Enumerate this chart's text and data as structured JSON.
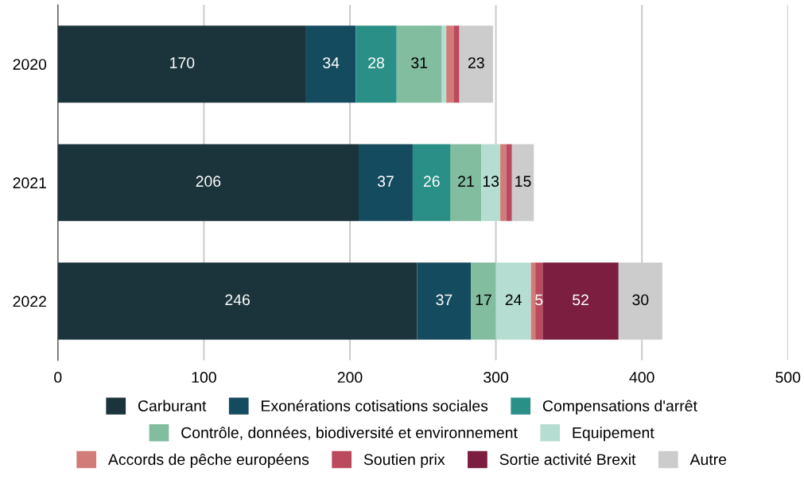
{
  "chart_data": {
    "type": "bar",
    "orientation": "horizontal",
    "stacked": true,
    "categories": [
      "2020",
      "2021",
      "2022"
    ],
    "series": [
      {
        "name": "Carburant",
        "color": "#1b343b",
        "values": [
          170,
          206,
          246
        ],
        "value_labels": [
          "170",
          "206",
          "246"
        ]
      },
      {
        "name": "Exonérations cotisations sociales",
        "color": "#154b5e",
        "values": [
          34,
          37,
          37
        ],
        "value_labels": [
          "34",
          "37",
          "37"
        ]
      },
      {
        "name": "Compensations d'arrêt",
        "color": "#2a8f87",
        "values": [
          28,
          26,
          null
        ],
        "value_labels": [
          "28",
          "26",
          null
        ]
      },
      {
        "name": "Contrôle, données, biodiversité et environnement",
        "color": "#82bda0",
        "values": [
          31,
          21,
          17
        ],
        "value_labels": [
          "31",
          "21",
          "17"
        ]
      },
      {
        "name": "Equipement",
        "color": "#b5ddd2",
        "values": [
          3,
          13,
          24
        ],
        "value_labels": [
          null,
          "13",
          "24"
        ]
      },
      {
        "name": "Accords de pêche européens",
        "color": "#d17c78",
        "values": [
          5,
          4,
          3
        ],
        "value_labels": [
          null,
          null,
          null
        ]
      },
      {
        "name": "Soutien prix",
        "color": "#bb4a5e",
        "values": [
          4,
          4,
          5
        ],
        "value_labels": [
          null,
          null,
          "5"
        ]
      },
      {
        "name": "Sortie activité Brexit",
        "color": "#7b1e40",
        "values": [
          null,
          null,
          52
        ],
        "value_labels": [
          null,
          null,
          "52"
        ]
      },
      {
        "name": "Autre",
        "color": "#cccccc",
        "values": [
          23,
          15,
          30
        ],
        "value_labels": [
          "23",
          "15",
          "30"
        ]
      }
    ],
    "xlim": [
      0,
      500
    ],
    "xticks": [
      0,
      100,
      200,
      300,
      400,
      500
    ],
    "grid": "x",
    "legend": "bottom"
  }
}
